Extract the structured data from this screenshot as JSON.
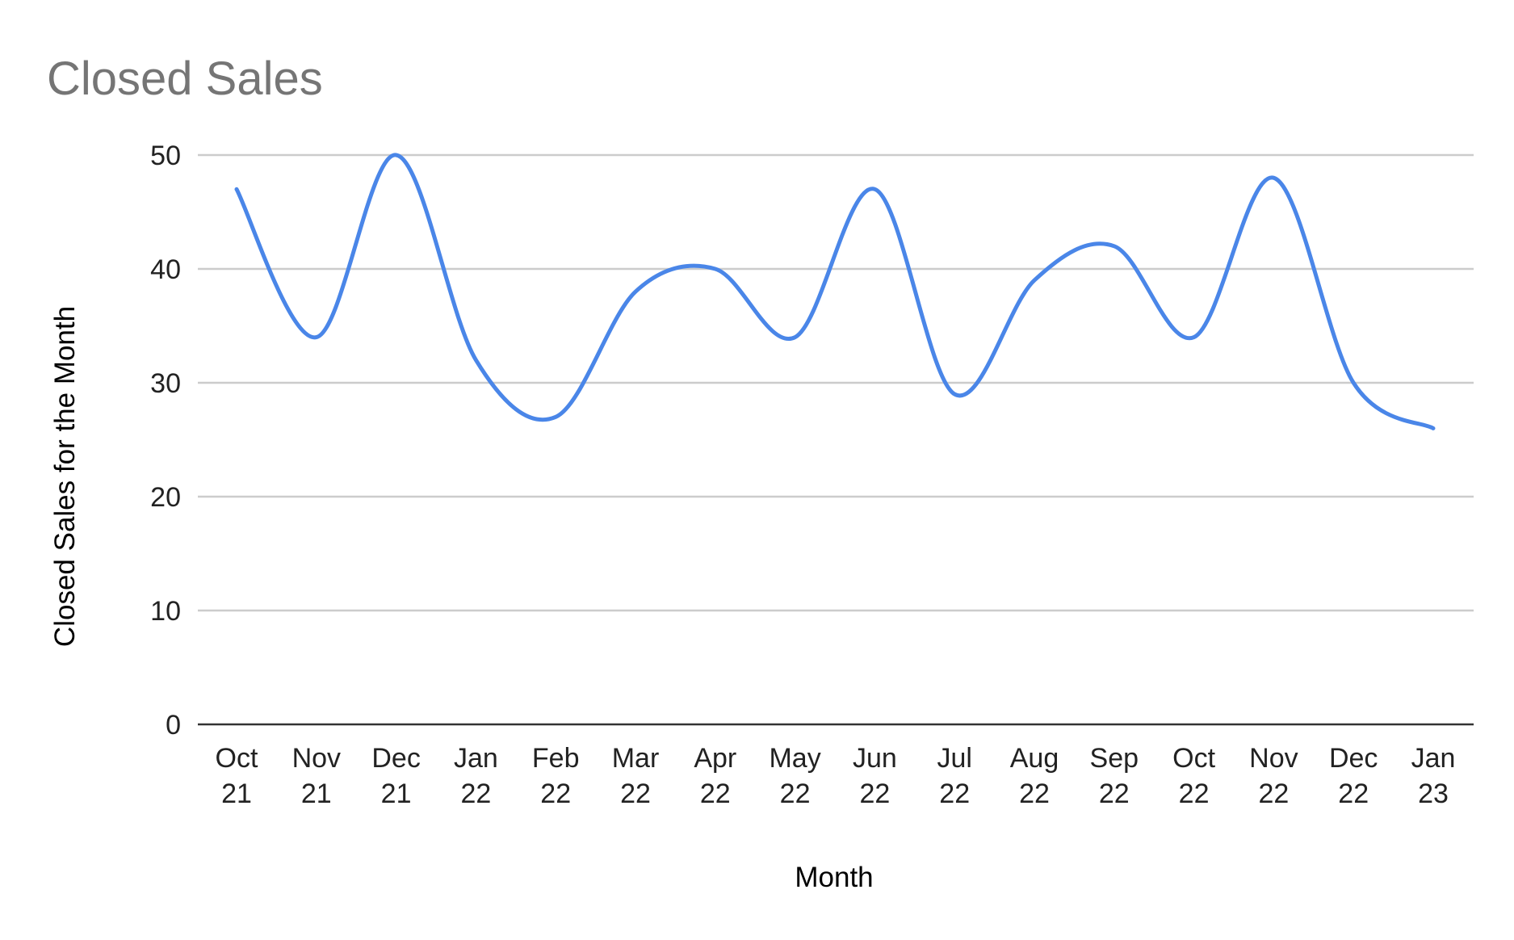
{
  "chart_data": {
    "type": "line",
    "title": "Closed Sales",
    "xlabel": "Month",
    "ylabel": "Closed Sales for the Month",
    "ylim": [
      0,
      50
    ],
    "yticks": [
      0,
      10,
      20,
      30,
      40,
      50
    ],
    "grid": true,
    "legend": "none",
    "smooth": true,
    "categories": [
      [
        "Oct",
        "21"
      ],
      [
        "Nov",
        "21"
      ],
      [
        "Dec",
        "21"
      ],
      [
        "Jan",
        "22"
      ],
      [
        "Feb",
        "22"
      ],
      [
        "Mar",
        "22"
      ],
      [
        "Apr",
        "22"
      ],
      [
        "May",
        "22"
      ],
      [
        "Jun",
        "22"
      ],
      [
        "Jul",
        "22"
      ],
      [
        "Aug",
        "22"
      ],
      [
        "Sep",
        "22"
      ],
      [
        "Oct",
        "22"
      ],
      [
        "Nov",
        "22"
      ],
      [
        "Dec",
        "22"
      ],
      [
        "Jan",
        "23"
      ]
    ],
    "series": [
      {
        "color": "#4a86e8",
        "values": [
          47,
          34,
          50,
          32,
          27,
          38,
          40,
          34,
          47,
          29,
          39,
          42,
          34,
          48,
          30,
          26
        ]
      }
    ]
  }
}
